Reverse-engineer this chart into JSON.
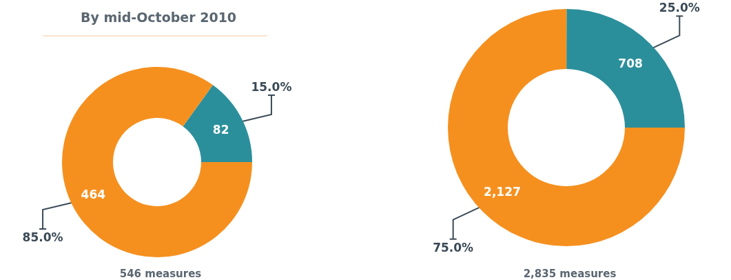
{
  "chart_data": [
    {
      "type": "donut",
      "title": "By mid-October 2010",
      "subtitle": "546 measures",
      "categories": [
        null,
        null
      ],
      "values": [
        82,
        464
      ],
      "colors": [
        "#2b8f9b",
        "#f5901f"
      ],
      "value_labels": [
        "82",
        "464"
      ],
      "annotations": [
        "15.0%",
        "85.0%"
      ]
    },
    {
      "type": "donut",
      "subtitle": "2,835 measures",
      "categories": [
        null,
        null
      ],
      "values": [
        708,
        2127
      ],
      "colors": [
        "#2b8f9b",
        "#f5901f"
      ],
      "value_labels": [
        "708",
        "2,127"
      ],
      "annotations": [
        "25.0%",
        "75.0%"
      ]
    }
  ]
}
